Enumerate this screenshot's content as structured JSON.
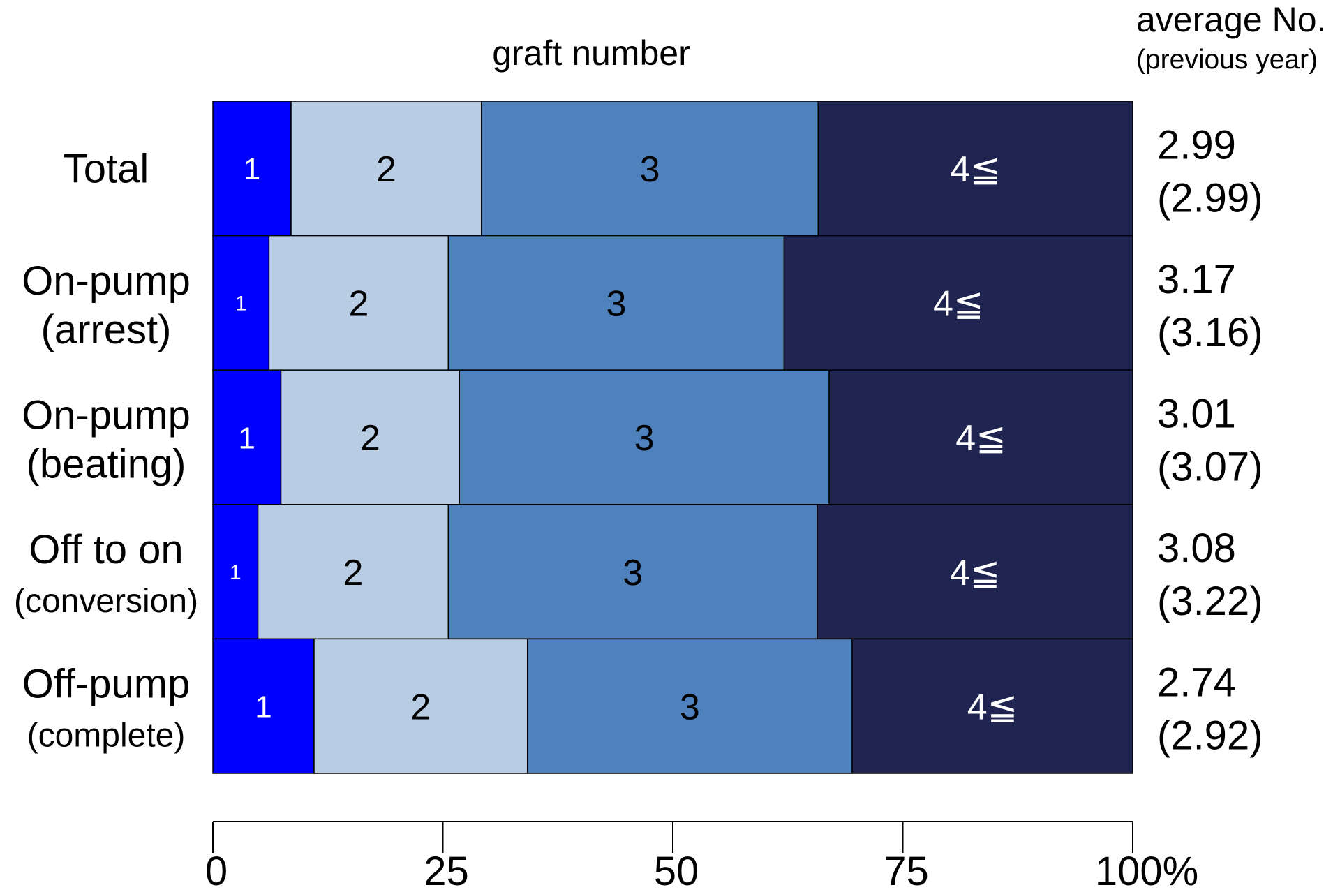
{
  "chart_data": {
    "type": "bar",
    "orientation": "horizontal",
    "stacked": true,
    "percent_stacked": true,
    "title": "graft number",
    "right_header": {
      "line1": "average No.",
      "line2": "(previous year)"
    },
    "categories": [
      {
        "line1": "Total",
        "line2": ""
      },
      {
        "line1": "On-pump",
        "line2": "(arrest)"
      },
      {
        "line1": "On-pump",
        "line2": "(beating)"
      },
      {
        "line1": "Off to on",
        "line2": "(conversion)"
      },
      {
        "line1": "Off-pump",
        "line2": "(complete)"
      }
    ],
    "series": [
      {
        "name": "1",
        "color": "#0000ff",
        "label_color": "#ffffff",
        "values": [
          8.5,
          6.1,
          7.4,
          4.9,
          11.0
        ]
      },
      {
        "name": "2",
        "color": "#b8cce4",
        "label_color": "#000000",
        "values": [
          20.7,
          19.5,
          19.4,
          20.7,
          23.2
        ]
      },
      {
        "name": "3",
        "color": "#4f81bd",
        "label_color": "#000000",
        "values": [
          36.6,
          36.5,
          40.2,
          40.1,
          35.3
        ]
      },
      {
        "name": "4≦",
        "color": "#1f2451",
        "label_color": "#ffffff",
        "values": [
          34.2,
          37.9,
          33.0,
          34.3,
          30.5
        ]
      }
    ],
    "averages": [
      {
        "current": "2.99",
        "previous": "(2.99)"
      },
      {
        "current": "3.17",
        "previous": "(3.16)"
      },
      {
        "current": "3.01",
        "previous": "(3.07)"
      },
      {
        "current": "3.08",
        "previous": "(3.22)"
      },
      {
        "current": "2.74",
        "previous": "(2.92)"
      }
    ],
    "x_ticks": [
      {
        "value": 0,
        "label": "0"
      },
      {
        "value": 25,
        "label": "25"
      },
      {
        "value": 50,
        "label": "50"
      },
      {
        "value": 75,
        "label": "75"
      },
      {
        "value": 100,
        "label": "100%"
      }
    ],
    "xlim": [
      0,
      100
    ],
    "grid": false,
    "legend": "none"
  }
}
